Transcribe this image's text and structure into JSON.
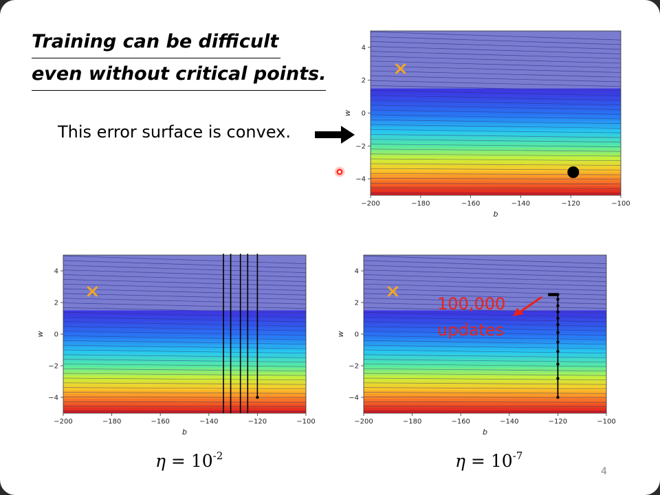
{
  "slide": {
    "title_line1": "Training can be difficult",
    "title_line2": "even without critical points.",
    "convex_text": "This error surface is convex.",
    "page_number": "4"
  },
  "colors": {
    "minimum_marker": "#f5a623",
    "annotation": "#e8231a",
    "trajectory": "#000000",
    "laser": "#ff2a1a"
  },
  "icons": {
    "arrow": "right-arrow-icon",
    "laser": "laser-pointer-icon",
    "minimum": "x-marker-icon"
  },
  "chart_data": [
    {
      "type": "contour",
      "id": "top",
      "xlabel": "b",
      "ylabel": "w",
      "xlim": [
        -200,
        -100
      ],
      "ylim": [
        -5,
        5
      ],
      "xticks": [
        -200,
        -180,
        -160,
        -140,
        -120,
        -100
      ],
      "yticks": [
        -4,
        -2,
        0,
        2,
        4
      ],
      "minimum": {
        "b": -188,
        "w": 2.7
      },
      "start_point": {
        "b": -119,
        "w": -3.6
      }
    },
    {
      "type": "contour",
      "id": "left",
      "xlabel": "b",
      "ylabel": "w",
      "xlim": [
        -200,
        -100
      ],
      "ylim": [
        -5,
        5
      ],
      "xticks": [
        -200,
        -180,
        -160,
        -140,
        -120,
        -100
      ],
      "yticks": [
        -4,
        -2,
        0,
        2,
        4
      ],
      "minimum": {
        "b": -188,
        "w": 2.7
      },
      "trajectory_verticals_b": [
        -120,
        -124,
        -127,
        -131,
        -134
      ],
      "trajectory_start": {
        "b": -120,
        "w": -4
      },
      "caption_symbol": "η",
      "caption_base": " = 10",
      "caption_exp": "-2"
    },
    {
      "type": "contour",
      "id": "right",
      "xlabel": "b",
      "ylabel": "w",
      "xlim": [
        -200,
        -100
      ],
      "ylim": [
        -5,
        5
      ],
      "xticks": [
        -200,
        -180,
        -160,
        -140,
        -120,
        -100
      ],
      "yticks": [
        -4,
        -2,
        0,
        2,
        4
      ],
      "minimum": {
        "b": -188,
        "w": 2.7
      },
      "trajectory_points": [
        {
          "b": -120,
          "w": -4
        },
        {
          "b": -120,
          "w": -2.8
        },
        {
          "b": -120,
          "w": -1.9
        },
        {
          "b": -120,
          "w": -1.1
        },
        {
          "b": -120,
          "w": -0.5
        },
        {
          "b": -120,
          "w": 0.1
        },
        {
          "b": -120,
          "w": 0.6
        },
        {
          "b": -120,
          "w": 1.0
        },
        {
          "b": -120,
          "w": 1.4
        },
        {
          "b": -120,
          "w": 1.8
        },
        {
          "b": -120,
          "w": 2.2
        },
        {
          "b": -120,
          "w": 2.5
        }
      ],
      "trajectory_hook": [
        {
          "b": -124,
          "w": 2.5
        },
        {
          "b": -120,
          "w": 2.5
        }
      ],
      "annotation_line1": "100,000",
      "annotation_line2": "updates",
      "caption_symbol": "η",
      "caption_base": " = 10",
      "caption_exp": "-7"
    }
  ]
}
